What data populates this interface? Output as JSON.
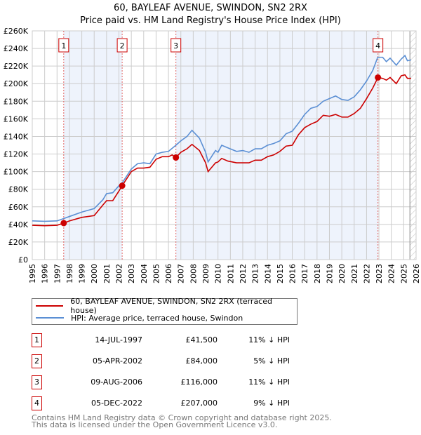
{
  "title": "60, BAYLEAF AVENUE, SWINDON, SN2 2RX",
  "subtitle": "Price paid vs. HM Land Registry's House Price Index (HPI)",
  "chart_data": {
    "type": "line",
    "xlim": [
      1995,
      2026
    ],
    "ylim": [
      0,
      260000
    ],
    "yticks": [
      0,
      20000,
      40000,
      60000,
      80000,
      100000,
      120000,
      140000,
      160000,
      180000,
      200000,
      220000,
      240000,
      260000
    ],
    "ytick_labels": [
      "£0",
      "£20K",
      "£40K",
      "£60K",
      "£80K",
      "£100K",
      "£120K",
      "£140K",
      "£160K",
      "£180K",
      "£200K",
      "£220K",
      "£240K",
      "£260K"
    ],
    "xticks": [
      1995,
      1996,
      1997,
      1998,
      1999,
      2000,
      2001,
      2002,
      2003,
      2004,
      2005,
      2006,
      2007,
      2008,
      2009,
      2010,
      2011,
      2012,
      2013,
      2014,
      2015,
      2016,
      2017,
      2018,
      2019,
      2020,
      2021,
      2022,
      2023,
      2024,
      2025,
      2026
    ],
    "grid": true,
    "forecast_hatch_from": 2025.5,
    "series": [
      {
        "name": "60, BAYLEAF AVENUE, SWINDON, SN2 2RX (terraced house)",
        "color": "#cc0000",
        "x": [
          1995,
          1996,
          1997,
          1997.54,
          1998,
          1999,
          2000,
          2000.7,
          2001,
          2001.5,
          2002,
          2002.26,
          2003,
          2003.5,
          2004,
          2004.5,
          2005,
          2005.5,
          2006,
          2006.3,
          2006.6,
          2007,
          2007.5,
          2007.9,
          2008.5,
          2009,
          2009.2,
          2009.8,
          2010,
          2010.3,
          2010.8,
          2011.5,
          2012,
          2012.5,
          2013,
          2013.5,
          2014,
          2014.5,
          2015,
          2015.5,
          2016,
          2016.5,
          2017,
          2017.5,
          2018,
          2018.5,
          2019,
          2019.5,
          2020,
          2020.5,
          2021,
          2021.5,
          2022,
          2022.5,
          2022.92,
          2023.3,
          2023.6,
          2023.9,
          2024.4,
          2024.8,
          2025.1,
          2025.3,
          2025.6
        ],
        "y": [
          39000,
          38500,
          39000,
          41500,
          44000,
          48000,
          50000,
          62000,
          67000,
          67000,
          78000,
          84000,
          100000,
          104000,
          104000,
          105000,
          114000,
          117000,
          117000,
          119000,
          116000,
          122000,
          126000,
          131000,
          124000,
          110000,
          100000,
          110000,
          111000,
          115000,
          112000,
          110000,
          110000,
          110000,
          113000,
          113000,
          117000,
          119000,
          123000,
          129000,
          130000,
          142000,
          150000,
          154000,
          157000,
          164000,
          163000,
          165000,
          162000,
          162000,
          166000,
          172000,
          183000,
          195000,
          207000,
          206000,
          204000,
          207000,
          200000,
          209000,
          210000,
          206000,
          206000
        ]
      },
      {
        "name": "HPI: Average price, terraced house, Swindon",
        "color": "#5b8fd4",
        "x": [
          1995,
          1996,
          1997,
          1997.5,
          1998,
          1999,
          2000,
          2000.7,
          2001,
          2001.5,
          2002,
          2002.3,
          2003,
          2003.5,
          2004,
          2004.5,
          2005,
          2005.5,
          2006,
          2006.6,
          2007,
          2007.5,
          2007.9,
          2008.5,
          2009,
          2009.2,
          2009.8,
          2010,
          2010.3,
          2010.8,
          2011.5,
          2012,
          2012.5,
          2013,
          2013.5,
          2014,
          2014.5,
          2015,
          2015.5,
          2016,
          2016.5,
          2017,
          2017.5,
          2018,
          2018.5,
          2019,
          2019.5,
          2020,
          2020.5,
          2021,
          2021.5,
          2022,
          2022.5,
          2022.9,
          2023.3,
          2023.6,
          2023.9,
          2024.4,
          2024.8,
          2025.1,
          2025.3,
          2025.6
        ],
        "y": [
          44000,
          43500,
          44000,
          46500,
          49000,
          54000,
          58000,
          68000,
          75000,
          76000,
          84000,
          88000,
          103000,
          109000,
          110000,
          109000,
          120000,
          122000,
          123000,
          130000,
          135000,
          140000,
          147000,
          138000,
          122000,
          111000,
          124000,
          122000,
          130000,
          127000,
          123000,
          124000,
          122000,
          126000,
          126000,
          130000,
          132000,
          135000,
          143000,
          146000,
          155000,
          165000,
          172000,
          174000,
          180000,
          183000,
          186000,
          182000,
          181000,
          185000,
          193000,
          203000,
          215000,
          230000,
          230000,
          225000,
          229000,
          221000,
          228000,
          232000,
          226000,
          227000
        ]
      }
    ],
    "sales": [
      {
        "label": "1",
        "x": 1997.54,
        "y": 41500
      },
      {
        "label": "2",
        "x": 2002.26,
        "y": 84000
      },
      {
        "label": "3",
        "x": 2006.6,
        "y": 116000
      },
      {
        "label": "4",
        "x": 2022.92,
        "y": 207000
      }
    ]
  },
  "legend": {
    "property": "60, BAYLEAF AVENUE, SWINDON, SN2 2RX (terraced house)",
    "hpi": "HPI: Average price, terraced house, Swindon"
  },
  "table": [
    {
      "num": "1",
      "date": "14-JUL-1997",
      "price": "£41,500",
      "hpi": "11% ↓ HPI"
    },
    {
      "num": "2",
      "date": "05-APR-2002",
      "price": "£84,000",
      "hpi": "5% ↓ HPI"
    },
    {
      "num": "3",
      "date": "09-AUG-2006",
      "price": "£116,000",
      "hpi": "11% ↓ HPI"
    },
    {
      "num": "4",
      "date": "05-DEC-2022",
      "price": "£207,000",
      "hpi": "9% ↓ HPI"
    }
  ],
  "footer": {
    "line1": "Contains HM Land Registry data © Crown copyright and database right 2025.",
    "line2": "This data is licensed under the Open Government Licence v3.0."
  }
}
